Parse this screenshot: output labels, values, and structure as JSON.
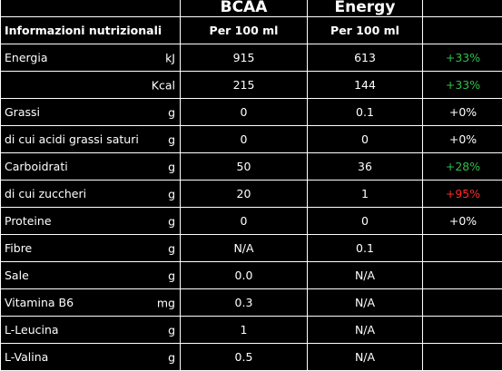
{
  "columns": {
    "bcaa": "BCAA",
    "energy": "Energy"
  },
  "header": {
    "label": "Informazioni nutrizionali",
    "bcaa_unit": "Per 100 ml",
    "energy_unit": "Per 100 ml"
  },
  "rows": [
    {
      "name": "Energia",
      "unit": "kJ",
      "bcaa": "915",
      "energy": "613",
      "diff": "+33%",
      "diff_color": "#2fbf4a"
    },
    {
      "name": "",
      "unit": "Kcal",
      "bcaa": "215",
      "energy": "144",
      "diff": "+33%",
      "diff_color": "#2fbf4a"
    },
    {
      "name": "Grassi",
      "unit": "g",
      "bcaa": "0",
      "energy": "0.1",
      "diff": "+0%",
      "diff_color": "#ffffff"
    },
    {
      "name": "di cui acidi grassi saturi",
      "unit": "g",
      "bcaa": "0",
      "energy": "0",
      "diff": "+0%",
      "diff_color": "#ffffff"
    },
    {
      "name": "Carboidrati",
      "unit": "g",
      "bcaa": "50",
      "energy": "36",
      "diff": "+28%",
      "diff_color": "#2fbf4a"
    },
    {
      "name": "di cui zuccheri",
      "unit": "g",
      "bcaa": "20",
      "energy": "1",
      "diff": "+95%",
      "diff_color": "#ff2a2a"
    },
    {
      "name": "Proteine",
      "unit": "g",
      "bcaa": "0",
      "energy": "0",
      "diff": "+0%",
      "diff_color": "#ffffff"
    },
    {
      "name": "Fibre",
      "unit": "g",
      "bcaa": "N/A",
      "energy": "0.1",
      "diff": "",
      "diff_color": "#ffffff"
    },
    {
      "name": "Sale",
      "unit": "g",
      "bcaa": "0.0",
      "energy": "N/A",
      "diff": "",
      "diff_color": "#ffffff"
    },
    {
      "name": "Vitamina B6",
      "unit": "mg",
      "bcaa": "0.3",
      "energy": "N/A",
      "diff": "",
      "diff_color": "#ffffff"
    },
    {
      "name": "L-Leucina",
      "unit": "g",
      "bcaa": "1",
      "energy": "N/A",
      "diff": "",
      "diff_color": "#ffffff"
    },
    {
      "name": "L-Valina",
      "unit": "g",
      "bcaa": "0.5",
      "energy": "N/A",
      "diff": "",
      "diff_color": "#ffffff"
    }
  ]
}
